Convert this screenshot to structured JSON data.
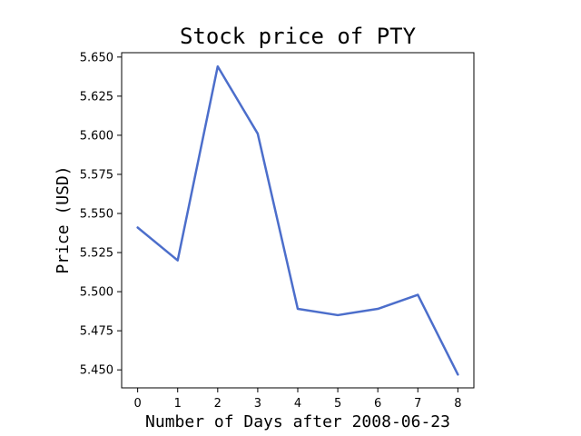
{
  "chart_data": {
    "type": "line",
    "title": "Stock price of PTY",
    "xlabel": "Number of Days after 2008-06-23",
    "ylabel": "Price (USD)",
    "x": [
      0,
      1,
      2,
      3,
      4,
      5,
      6,
      7,
      8
    ],
    "series": [
      {
        "values": [
          5.541,
          5.52,
          5.644,
          5.601,
          5.489,
          5.485,
          5.489,
          5.498,
          5.447
        ],
        "color": "#4c6ecb"
      }
    ],
    "xlim": [
      -0.4,
      8.4
    ],
    "ylim": [
      5.4385,
      5.6528
    ],
    "xticks": [
      "0",
      "1",
      "2",
      "3",
      "4",
      "5",
      "6",
      "7",
      "8"
    ],
    "yticks": [
      "5.450",
      "5.475",
      "5.500",
      "5.525",
      "5.550",
      "5.575",
      "5.600",
      "5.625",
      "5.650"
    ],
    "grid": false,
    "legend": "none"
  }
}
